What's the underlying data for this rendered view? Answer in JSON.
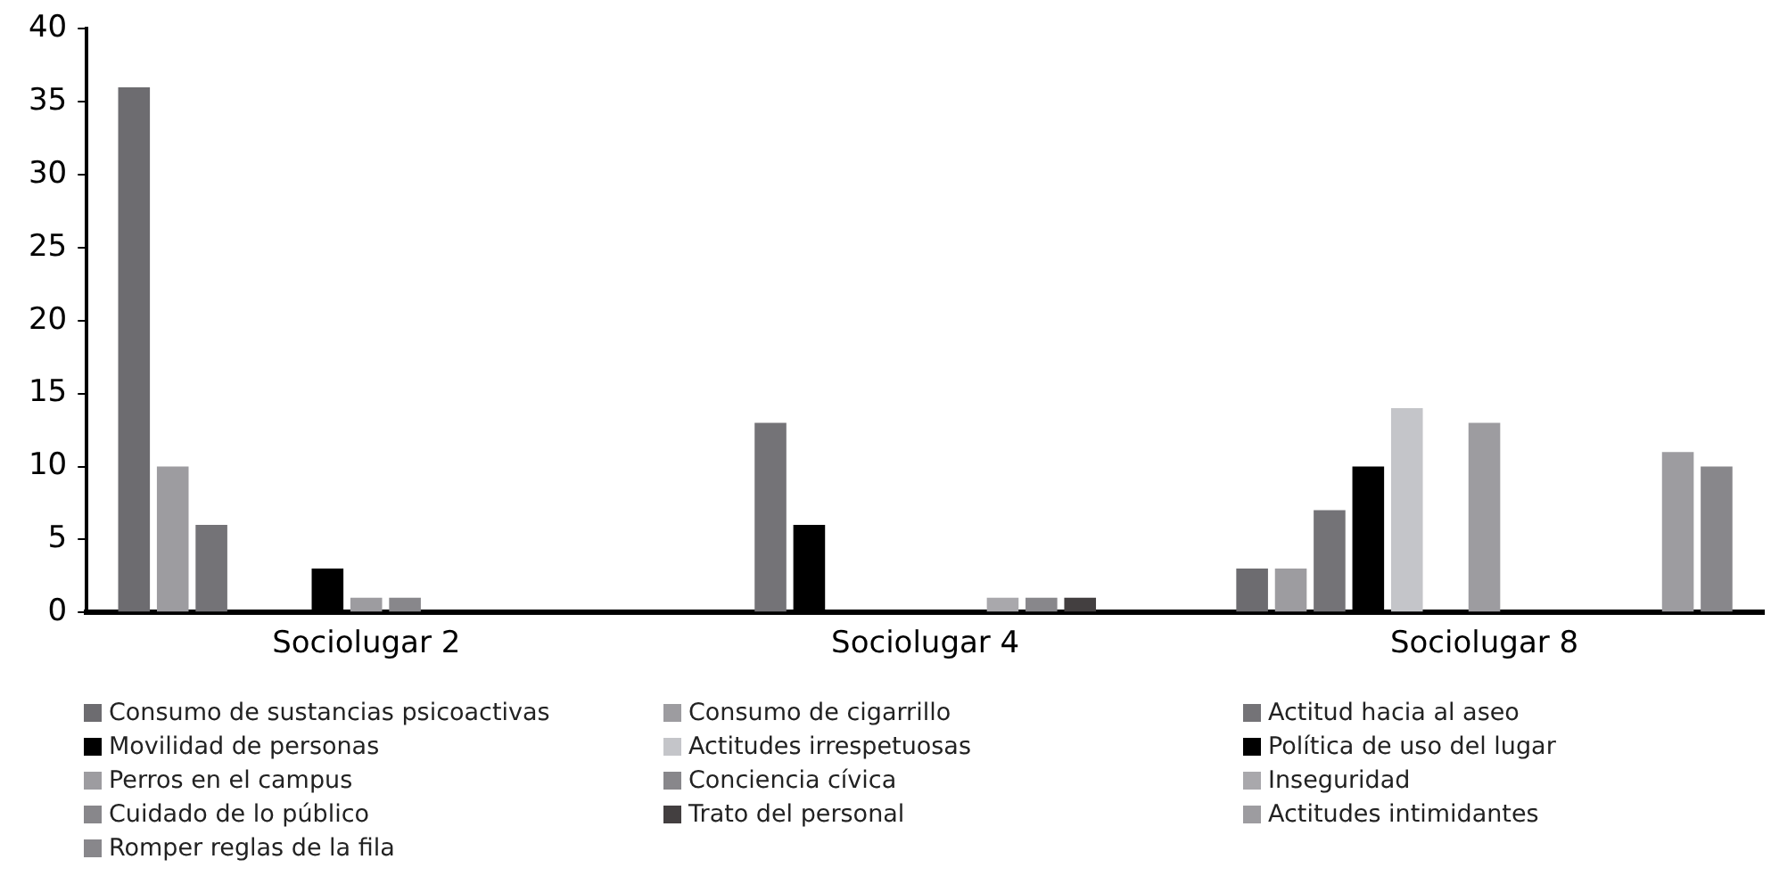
{
  "chart_data": {
    "type": "bar",
    "categories": [
      "Sociolugar 2",
      "Sociolugar 4",
      "Sociolugar 8"
    ],
    "ylim": [
      0,
      40
    ],
    "yticks": [
      0,
      5,
      10,
      15,
      20,
      25,
      30,
      35,
      40
    ],
    "grid": false,
    "legend": "bottom",
    "series": [
      {
        "name": "Consumo de sustancias psicoactivas",
        "color": "#6d6c70",
        "values": [
          36,
          null,
          3
        ]
      },
      {
        "name": "Consumo de cigarrillo",
        "color": "#9d9ca0",
        "values": [
          10,
          null,
          3
        ]
      },
      {
        "name": "Actitud hacia al aseo",
        "color": "#747377",
        "values": [
          6,
          13,
          7
        ]
      },
      {
        "name": "Movilidad de personas",
        "color": "#000000",
        "values": [
          null,
          6,
          10
        ]
      },
      {
        "name": "Actitudes irrespetuosas",
        "color": "#c4c5c9",
        "values": [
          null,
          null,
          14
        ]
      },
      {
        "name": "Política de uso del lugar",
        "color": "#000000",
        "values": [
          3,
          null,
          null
        ]
      },
      {
        "name": "Perros en el campus",
        "color": "#9d9ca0",
        "values": [
          1,
          null,
          13
        ]
      },
      {
        "name": "Conciencia cívica",
        "color": "#88878b",
        "values": [
          1,
          null,
          null
        ]
      },
      {
        "name": "Inseguridad",
        "color": "#a9a8ac",
        "values": [
          null,
          1,
          null
        ]
      },
      {
        "name": "Cuidado de lo público",
        "color": "#88878b",
        "values": [
          null,
          1,
          null
        ]
      },
      {
        "name": "Trato del personal",
        "color": "#433f40",
        "values": [
          null,
          1,
          null
        ]
      },
      {
        "name": "Actitudes intimidantes",
        "color": "#9d9ca0",
        "values": [
          null,
          null,
          11
        ]
      },
      {
        "name": "Romper reglas de la fila",
        "color": "#88878b",
        "values": [
          null,
          null,
          10
        ]
      }
    ]
  }
}
